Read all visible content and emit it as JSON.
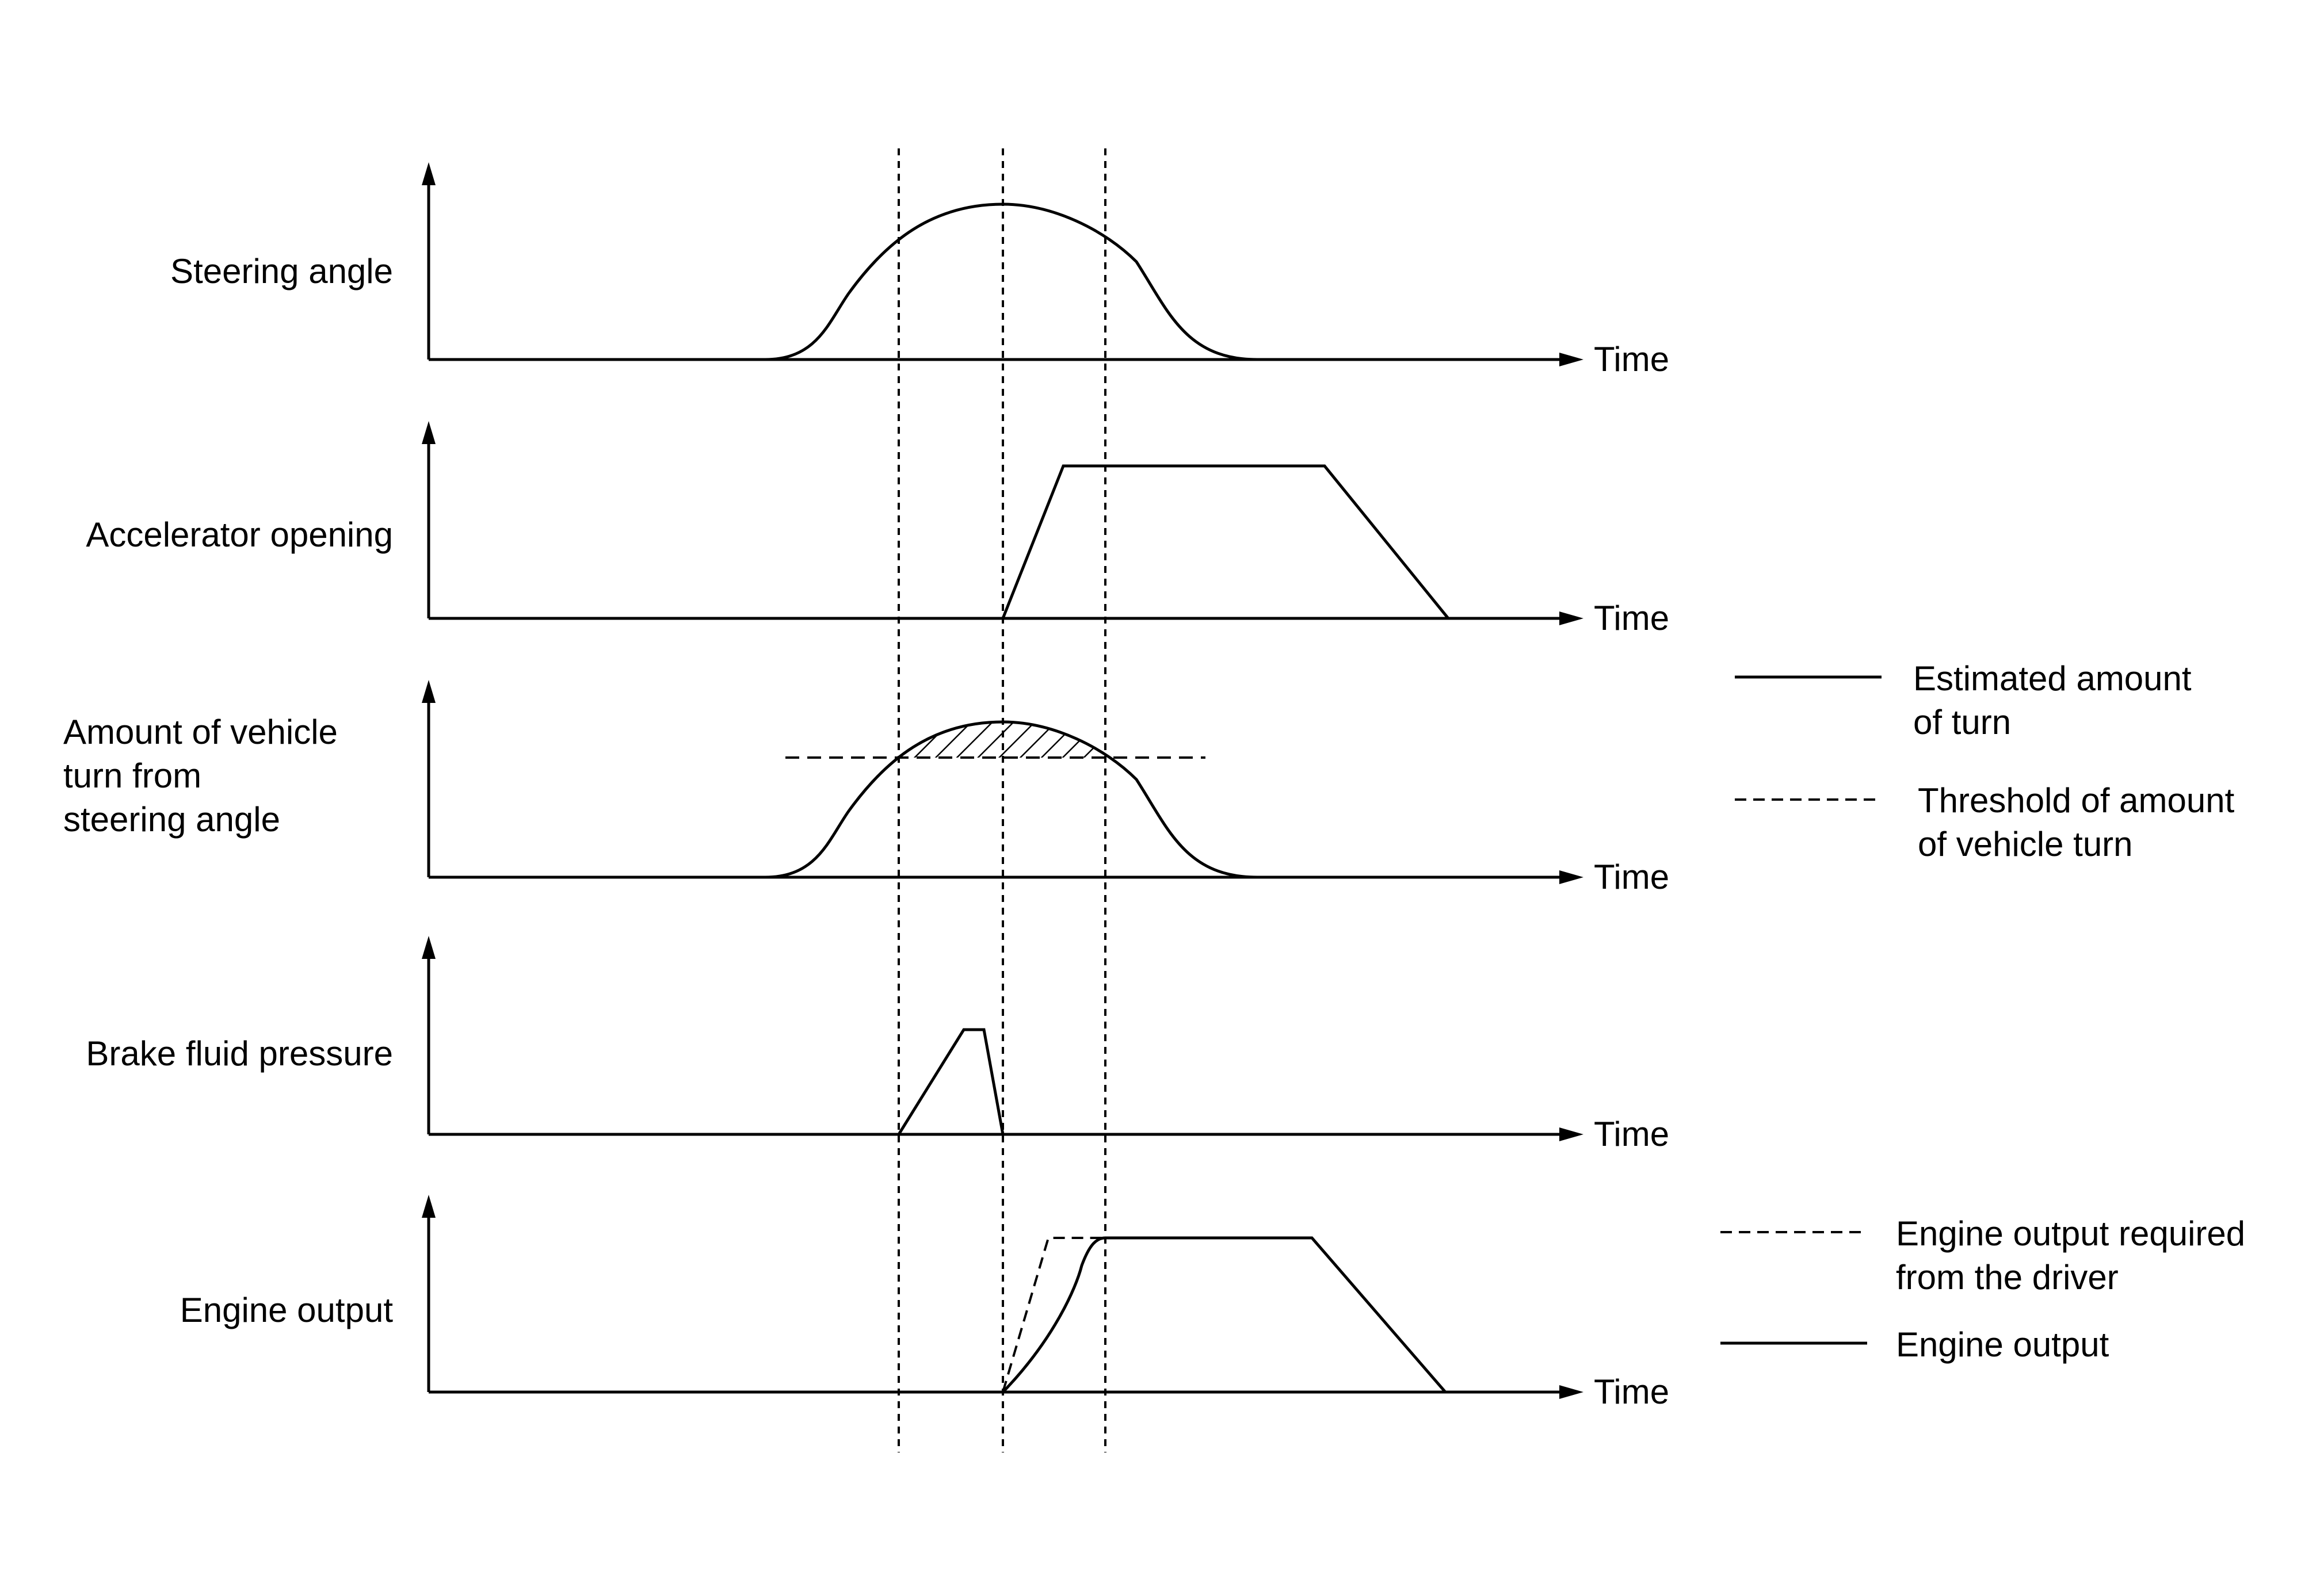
{
  "diagram": {
    "panels": [
      {
        "id": "steering",
        "label_lines": [
          "Steering angle"
        ],
        "axis_label": "Time"
      },
      {
        "id": "accelerator",
        "label_lines": [
          "Accelerator opening"
        ],
        "axis_label": "Time"
      },
      {
        "id": "turn",
        "label_lines": [
          "Amount of vehicle",
          "turn from",
          "steering angle"
        ],
        "axis_label": "Time"
      },
      {
        "id": "brake",
        "label_lines": [
          "Brake fluid pressure"
        ],
        "axis_label": "Time"
      },
      {
        "id": "engine",
        "label_lines": [
          "Engine output"
        ],
        "axis_label": "Time"
      }
    ],
    "legends": {
      "turn": [
        {
          "style": "solid",
          "lines": [
            "Estimated amount",
            "of turn"
          ]
        },
        {
          "style": "dashed",
          "lines": [
            "Threshold of amount",
            "of vehicle turn"
          ]
        }
      ],
      "engine": [
        {
          "style": "dashed",
          "lines": [
            "Engine output required",
            "from the driver"
          ]
        },
        {
          "style": "solid",
          "lines": [
            "Engine output"
          ]
        }
      ]
    },
    "line_color": "#000000",
    "background": "#ffffff"
  }
}
